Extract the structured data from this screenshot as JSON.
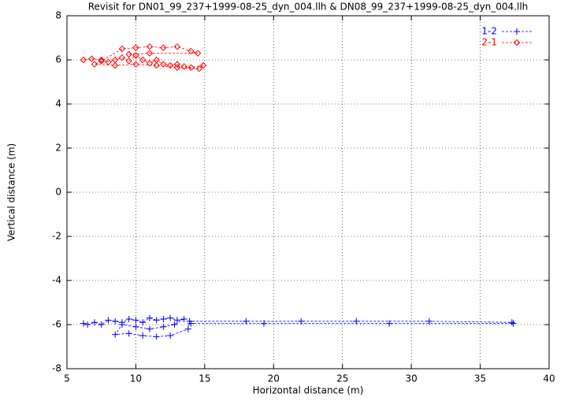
{
  "chart_data": {
    "type": "line",
    "title": "Revisit for DN01_99_237+1999-08-25_dyn_004.llh & DN08_99_237+1999-08-25_dyn_004.llh",
    "x_label": "Horizontal distance (m)",
    "y_label": "Vertical distance (m)",
    "xlim": [
      5,
      40
    ],
    "xticks": [
      5,
      10,
      15,
      20,
      25,
      30,
      35,
      40
    ],
    "ylim": [
      -8,
      8
    ],
    "yticks": [
      -8,
      -6,
      -4,
      -2,
      0,
      2,
      4,
      6,
      8
    ],
    "grid": true,
    "legend": "upper right",
    "series": [
      {
        "name": "1-2",
        "color": "#0000ff",
        "marker": "plus",
        "x": [
          6.2,
          6.5,
          7.0,
          7.5,
          8.0,
          8.5,
          9.0,
          9.5,
          10.0,
          10.5,
          11.0,
          11.5,
          12.0,
          12.5,
          13.0,
          13.5,
          12.8,
          12.0,
          11.0,
          10.0,
          9.0,
          8.5,
          9.5,
          10.5,
          11.5,
          12.5,
          13.8,
          13.9,
          18.0,
          22.0,
          26.0,
          31.3,
          37.3,
          37.4,
          28.4,
          19.3,
          14.0
        ],
        "values": [
          -5.95,
          -6.0,
          -5.9,
          -6.0,
          -5.8,
          -5.85,
          -5.9,
          -5.75,
          -5.8,
          -5.9,
          -5.7,
          -5.8,
          -5.75,
          -5.7,
          -5.8,
          -5.75,
          -6.0,
          -6.1,
          -6.2,
          -6.1,
          -6.0,
          -6.45,
          -6.4,
          -6.5,
          -6.55,
          -6.5,
          -6.2,
          -5.85,
          -5.85,
          -5.85,
          -5.85,
          -5.85,
          -5.9,
          -5.95,
          -5.95,
          -5.95,
          -5.95
        ]
      },
      {
        "name": "2-1",
        "color": "#ff0000",
        "marker": "diamond",
        "x": [
          6.2,
          6.8,
          7.5,
          8.0,
          8.5,
          9.0,
          9.5,
          10.0,
          10.5,
          11.0,
          11.5,
          12.0,
          12.5,
          13.0,
          13.5,
          14.0,
          14.9,
          14.6,
          13.0,
          11.5,
          10.0,
          8.5,
          7.0,
          7.5,
          9.0,
          10.0,
          11.0,
          12.0,
          13.0,
          14.0,
          14.5,
          11.0,
          9.5
        ],
        "values": [
          6.0,
          6.05,
          6.0,
          5.9,
          6.0,
          6.1,
          5.95,
          6.2,
          6.0,
          5.85,
          6.0,
          5.8,
          5.75,
          5.8,
          5.7,
          5.65,
          5.75,
          5.6,
          5.65,
          5.75,
          5.8,
          5.75,
          5.8,
          5.95,
          6.5,
          6.55,
          6.6,
          6.55,
          6.6,
          6.4,
          6.3,
          6.3,
          6.25
        ]
      }
    ]
  }
}
